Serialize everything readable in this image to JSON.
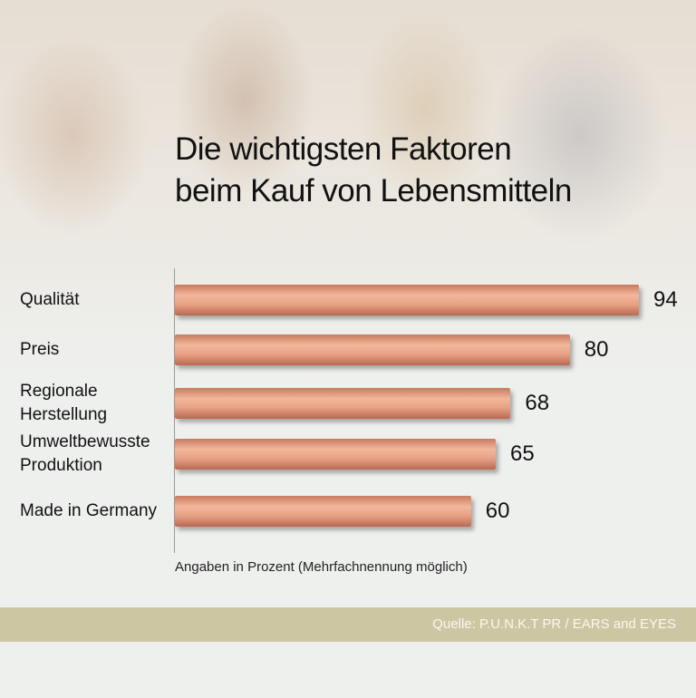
{
  "chart_data": {
    "type": "bar",
    "orientation": "horizontal",
    "title": "Die wichtigsten Faktoren\nbeim Kauf von Lebensmitteln",
    "categories": [
      "Qualität",
      "Preis",
      "Regionale Herstellung",
      "Umweltbewusste Produktion",
      "Made in Germany"
    ],
    "values": [
      94,
      80,
      68,
      65,
      60
    ],
    "color": "#e49a7c",
    "note": "Angaben in Prozent (Mehrfachnennung möglich)",
    "source": "Quelle: P.U.N.K.T PR / EARS and EYES"
  }
}
